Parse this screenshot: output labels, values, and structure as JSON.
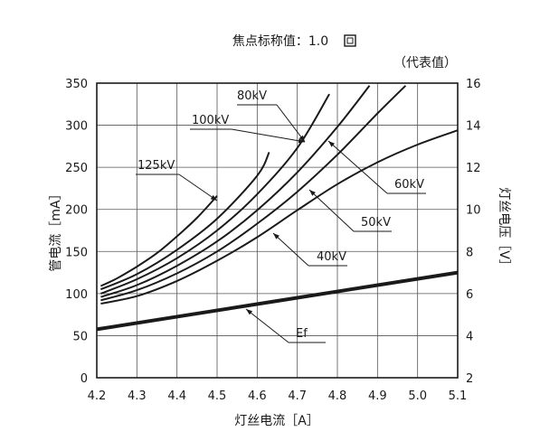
{
  "chart_data": {
    "type": "line",
    "title": "焦点标称值：1.0",
    "subtitle": "（代表值）",
    "xlabel": "灯丝电流［A］",
    "ylabel_left": "管电流［mA］",
    "ylabel_right": "灯丝电压［V］",
    "xlim": [
      4.2,
      5.1
    ],
    "ylim_left": [
      0,
      350
    ],
    "ylim_right": [
      2,
      16
    ],
    "x_ticks": [
      "4.2",
      "4.3",
      "4.4",
      "4.5",
      "4.6",
      "4.7",
      "4.8",
      "4.9",
      "5.0",
      "5.1"
    ],
    "y_ticks_left": [
      "0",
      "50",
      "100",
      "150",
      "200",
      "250",
      "300",
      "350"
    ],
    "y_ticks_right": [
      "2",
      "4",
      "6",
      "8",
      "10",
      "12",
      "14",
      "16"
    ],
    "grid": true,
    "series": [
      {
        "name": "125kV",
        "axis": "left",
        "x": [
          4.21,
          4.25,
          4.3,
          4.35,
          4.4,
          4.45,
          4.5
        ],
        "y": [
          109,
          118,
          132,
          148,
          168,
          190,
          216
        ]
      },
      {
        "name": "100kV",
        "axis": "left",
        "x": [
          4.21,
          4.3,
          4.4,
          4.5,
          4.6,
          4.63
        ],
        "y": [
          105,
          123,
          152,
          189,
          240,
          268
        ]
      },
      {
        "name": "80kV",
        "axis": "left",
        "x": [
          4.21,
          4.3,
          4.4,
          4.5,
          4.6,
          4.7,
          4.78
        ],
        "y": [
          100,
          117,
          142,
          175,
          218,
          273,
          337
        ]
      },
      {
        "name": "60kV",
        "axis": "left",
        "x": [
          4.21,
          4.3,
          4.4,
          4.5,
          4.6,
          4.7,
          4.8,
          4.88
        ],
        "y": [
          96,
          110,
          133,
          162,
          199,
          244,
          298,
          347
        ]
      },
      {
        "name": "50kV",
        "axis": "left",
        "x": [
          4.21,
          4.3,
          4.4,
          4.5,
          4.6,
          4.7,
          4.8,
          4.9,
          4.97
        ],
        "y": [
          92,
          104,
          124,
          150,
          183,
          221,
          265,
          314,
          347
        ]
      },
      {
        "name": "40kV",
        "axis": "left",
        "x": [
          4.21,
          4.3,
          4.4,
          4.5,
          4.6,
          4.7,
          4.8,
          4.9,
          5.0,
          5.1
        ],
        "y": [
          88,
          97,
          115,
          139,
          167,
          199,
          230,
          256,
          277,
          294
        ]
      },
      {
        "name": "Ef",
        "axis": "right",
        "x": [
          4.2,
          5.1
        ],
        "y": [
          4.3,
          7.0
        ]
      }
    ],
    "labels": [
      "125kV",
      "100kV",
      "80kV",
      "60kV",
      "50kV",
      "40kV",
      "Ef"
    ]
  }
}
